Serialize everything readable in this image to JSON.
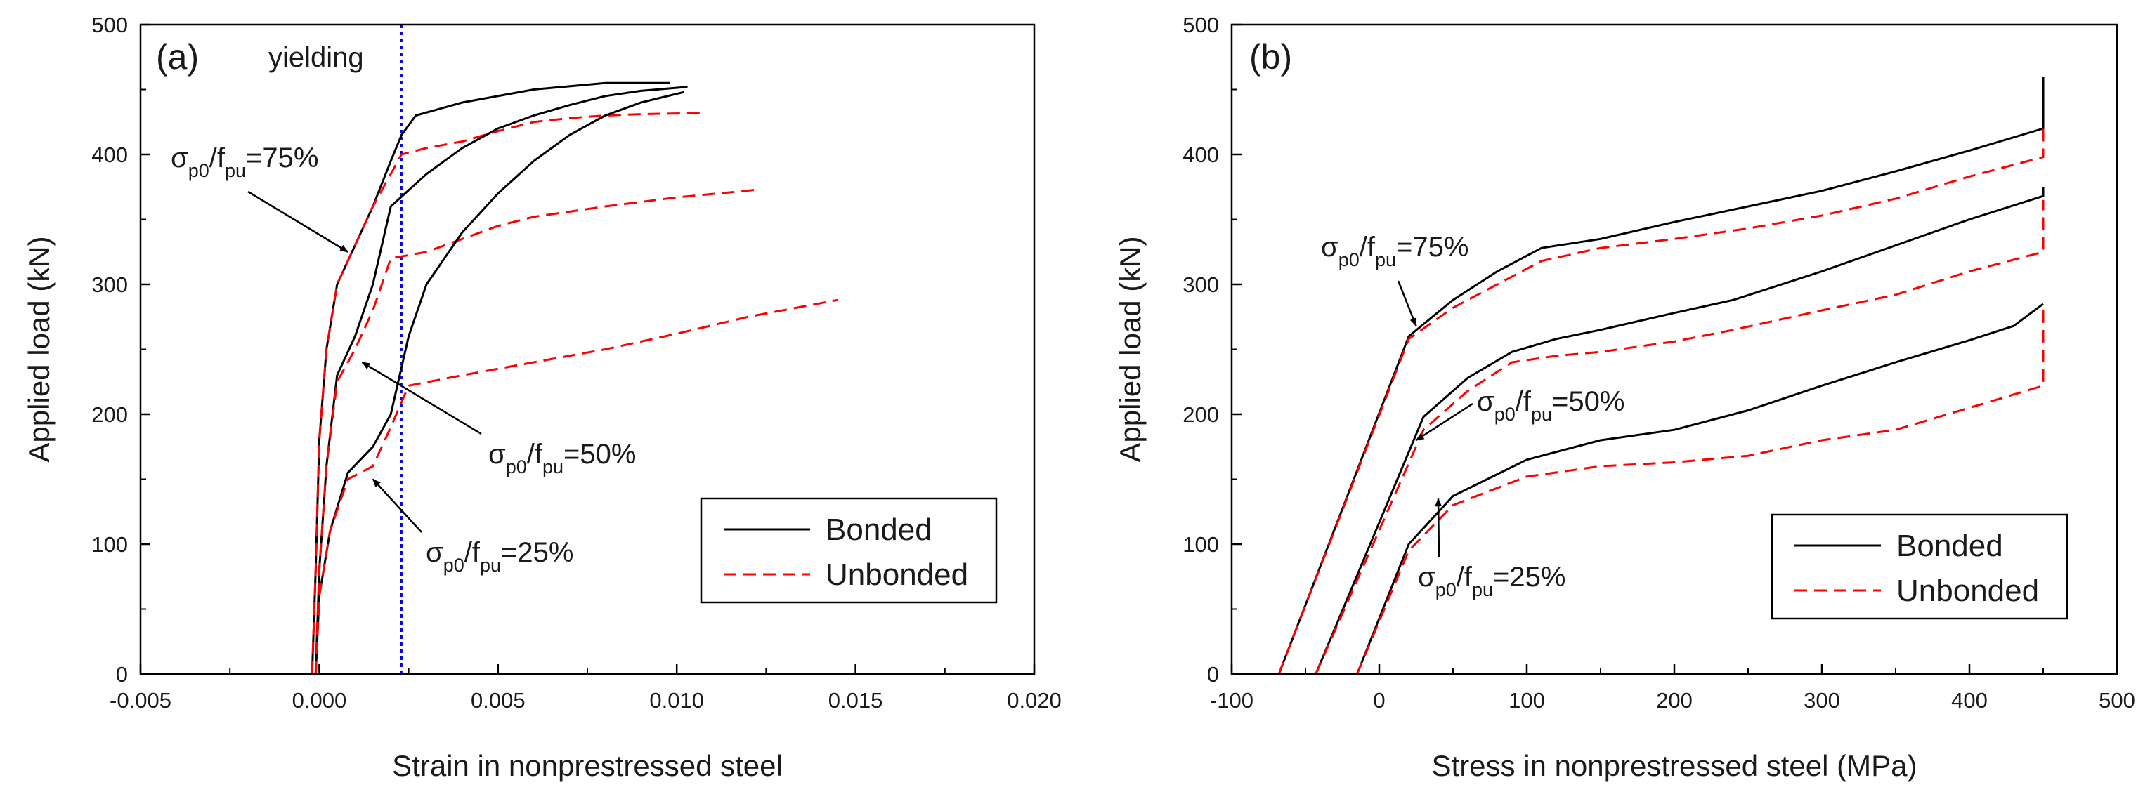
{
  "chart_data": [
    {
      "type": "line",
      "panel_label": "(a)",
      "xlabel": "Strain in nonprestressed steel",
      "ylabel": "Applied load (kN)",
      "xlim": [
        -0.005,
        0.02
      ],
      "ylim": [
        0,
        500
      ],
      "xticks": [
        "-0.005",
        "0.000",
        "0.005",
        "0.010",
        "0.015",
        "0.020"
      ],
      "yticks": [
        "0",
        "100",
        "200",
        "300",
        "400",
        "500"
      ],
      "grid": false,
      "legend": {
        "placement": "lower-right",
        "entries": [
          "Bonded",
          "Unbonded"
        ]
      },
      "series": [
        {
          "name": "Bonded",
          "label": "σp0/fpu=75%",
          "style": "solid",
          "color": "#000000",
          "x": [
            -0.0002,
            -0.0001,
            0,
            0.0002,
            0.0005,
            0.001,
            0.0015,
            0.002,
            0.0023,
            0.0027,
            0.004,
            0.006,
            0.008,
            0.0098
          ],
          "y": [
            0,
            80,
            180,
            250,
            300,
            330,
            360,
            395,
            415,
            430,
            440,
            450,
            455,
            455
          ]
        },
        {
          "name": "Unbonded",
          "label": "σp0/fpu=75%",
          "style": "dashed",
          "color": "#ff0000",
          "x": [
            -0.0002,
            -0.0001,
            0,
            0.0002,
            0.0005,
            0.001,
            0.0015,
            0.002,
            0.0023,
            0.003,
            0.004,
            0.005,
            0.006,
            0.007,
            0.008,
            0.009,
            0.0107
          ],
          "y": [
            0,
            80,
            180,
            250,
            300,
            330,
            360,
            385,
            400,
            405,
            410,
            418,
            425,
            428,
            430,
            431,
            432
          ]
        },
        {
          "name": "Bonded",
          "label": "σp0/fpu=50%",
          "style": "solid",
          "color": "#000000",
          "x": [
            -0.0001,
            0,
            0.0002,
            0.0005,
            0.001,
            0.0015,
            0.002,
            0.003,
            0.004,
            0.005,
            0.006,
            0.007,
            0.008,
            0.009,
            0.0103
          ],
          "y": [
            0,
            80,
            160,
            230,
            260,
            300,
            360,
            385,
            405,
            420,
            430,
            438,
            445,
            449,
            452
          ]
        },
        {
          "name": "Unbonded",
          "label": "σp0/fpu=50%",
          "style": "dashed",
          "color": "#ff0000",
          "x": [
            -0.0001,
            0,
            0.0002,
            0.0005,
            0.001,
            0.0015,
            0.002,
            0.003,
            0.004,
            0.005,
            0.006,
            0.008,
            0.01,
            0.0123
          ],
          "y": [
            0,
            80,
            160,
            225,
            250,
            280,
            320,
            325,
            335,
            345,
            352,
            360,
            367,
            373
          ]
        },
        {
          "name": "Bonded",
          "label": "σp0/fpu=25%",
          "style": "solid",
          "color": "#000000",
          "x": [
            -0.0001,
            0,
            0.0003,
            0.0008,
            0.0015,
            0.002,
            0.0025,
            0.003,
            0.004,
            0.005,
            0.006,
            0.007,
            0.008,
            0.009,
            0.0102
          ],
          "y": [
            0,
            60,
            110,
            155,
            175,
            200,
            260,
            300,
            340,
            370,
            395,
            415,
            430,
            440,
            448
          ]
        },
        {
          "name": "Unbonded",
          "label": "σp0/fpu=25%",
          "style": "dashed",
          "color": "#ff0000",
          "x": [
            -0.0001,
            0,
            0.0003,
            0.0008,
            0.0015,
            0.002,
            0.0025,
            0.004,
            0.006,
            0.008,
            0.01,
            0.012,
            0.0145
          ],
          "y": [
            0,
            60,
            110,
            150,
            160,
            190,
            222,
            230,
            240,
            250,
            262,
            275,
            288
          ]
        }
      ],
      "annotations": [
        {
          "type": "vline",
          "x": 0.0023,
          "color": "#0000ff",
          "style": "dotted",
          "text": "yielding"
        },
        {
          "text": "σp0/fpu=75%",
          "main": "σ",
          "sub1": "p0",
          "mid": "/f",
          "sub2": "pu",
          "tail": "=75%",
          "arrow_to": [
            0.0008,
            325
          ]
        },
        {
          "text": "σp0/fpu=50%",
          "main": "σ",
          "sub1": "p0",
          "mid": "/f",
          "sub2": "pu",
          "tail": "=50%",
          "arrow_to": [
            0.0012,
            240
          ]
        },
        {
          "text": "σp0/fpu=25%",
          "main": "σ",
          "sub1": "p0",
          "mid": "/f",
          "sub2": "pu",
          "tail": "=25%",
          "arrow_to": [
            0.0015,
            150
          ]
        }
      ]
    },
    {
      "type": "line",
      "panel_label": "(b)",
      "xlabel": "Stress in nonprestressed steel (MPa)",
      "ylabel": "Applied load (kN)",
      "xlim": [
        -100,
        500
      ],
      "ylim": [
        0,
        500
      ],
      "xticks": [
        "-100",
        "0",
        "100",
        "200",
        "300",
        "400",
        "500"
      ],
      "yticks": [
        "0",
        "100",
        "200",
        "300",
        "400",
        "500"
      ],
      "grid": false,
      "legend": {
        "placement": "lower-right",
        "entries": [
          "Bonded",
          "Unbonded"
        ]
      },
      "series": [
        {
          "name": "Bonded",
          "label": "σp0/fpu=75%",
          "style": "solid",
          "color": "#000000",
          "x": [
            -68,
            20,
            50,
            80,
            110,
            150,
            200,
            250,
            300,
            350,
            400,
            450,
            450
          ],
          "y": [
            0,
            260,
            288,
            310,
            328,
            335,
            348,
            360,
            372,
            387,
            403,
            420,
            460
          ]
        },
        {
          "name": "Unbonded",
          "label": "σp0/fpu=75%",
          "style": "dashed",
          "color": "#ff0000",
          "x": [
            -68,
            20,
            50,
            80,
            110,
            150,
            200,
            250,
            300,
            350,
            400,
            450,
            450
          ],
          "y": [
            0,
            258,
            282,
            300,
            318,
            328,
            335,
            343,
            353,
            366,
            383,
            398,
            420
          ]
        },
        {
          "name": "Bonded",
          "label": "σp0/fpu=50%",
          "style": "solid",
          "color": "#000000",
          "x": [
            -43,
            30,
            60,
            90,
            120,
            150,
            200,
            240,
            300,
            350,
            400,
            450,
            450
          ],
          "y": [
            0,
            198,
            228,
            248,
            258,
            265,
            278,
            288,
            310,
            330,
            350,
            368,
            375
          ]
        },
        {
          "name": "Unbonded",
          "label": "σp0/fpu=50%",
          "style": "dashed",
          "color": "#ff0000",
          "x": [
            -43,
            30,
            60,
            90,
            120,
            150,
            200,
            240,
            300,
            350,
            400,
            450,
            450
          ],
          "y": [
            0,
            188,
            218,
            240,
            245,
            248,
            256,
            265,
            280,
            292,
            310,
            325,
            365
          ]
        },
        {
          "name": "Bonded",
          "label": "σp0/fpu=25%",
          "style": "solid",
          "color": "#000000",
          "x": [
            -15,
            20,
            50,
            100,
            150,
            200,
            250,
            300,
            350,
            400,
            430,
            450,
            450
          ],
          "y": [
            0,
            100,
            137,
            165,
            180,
            188,
            203,
            222,
            240,
            257,
            268,
            285,
            285
          ]
        },
        {
          "name": "Unbonded",
          "label": "σp0/fpu=25%",
          "style": "dashed",
          "color": "#ff0000",
          "x": [
            -15,
            20,
            50,
            100,
            150,
            200,
            250,
            300,
            350,
            400,
            450,
            450
          ],
          "y": [
            0,
            95,
            130,
            152,
            160,
            163,
            168,
            180,
            188,
            205,
            222,
            285
          ]
        }
      ],
      "annotations": [
        {
          "text": "σp0/fpu=75%",
          "main": "σ",
          "sub1": "p0",
          "mid": "/f",
          "sub2": "pu",
          "tail": "=75%",
          "arrow_to": [
            25,
            268
          ]
        },
        {
          "text": "σp0/fpu=50%",
          "main": "σ",
          "sub1": "p0",
          "mid": "/f",
          "sub2": "pu",
          "tail": "=50%",
          "arrow_to": [
            25,
            180
          ]
        },
        {
          "text": "σp0/fpu=25%",
          "main": "σ",
          "sub1": "p0",
          "mid": "/f",
          "sub2": "pu",
          "tail": "=25%",
          "arrow_to": [
            40,
            135
          ]
        }
      ]
    }
  ]
}
